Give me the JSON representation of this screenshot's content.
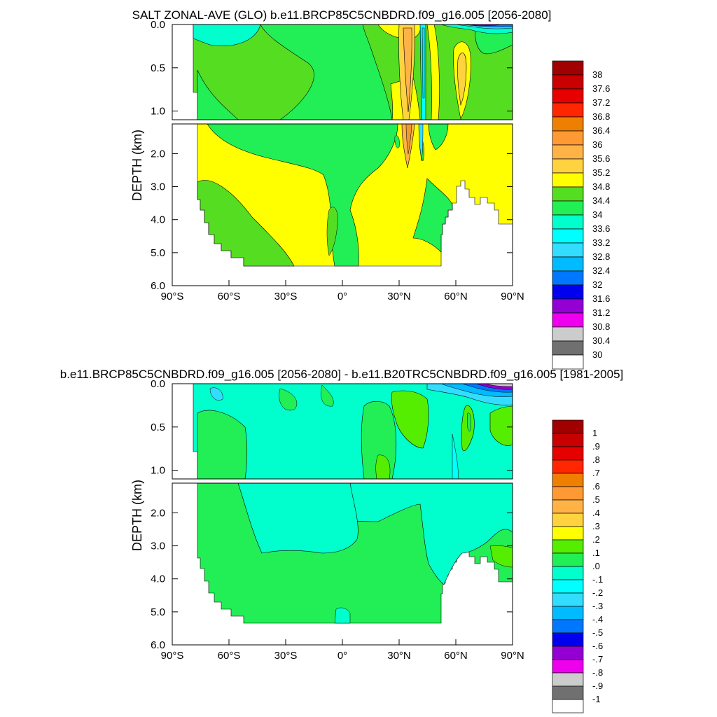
{
  "chart_data": [
    {
      "type": "heatmap",
      "title": "SALT ZONAL-AVE (GLO) b.e11.BRCP85C5CNBDRD.f09_g16.005 [2056-2080]",
      "xlabel": "",
      "ylabel": "DEPTH (km)",
      "x_ticks": [
        "90°S",
        "60°S",
        "30°S",
        "0°",
        "30°N",
        "60°N",
        "90°N"
      ],
      "x_values": [
        -90,
        -60,
        -30,
        0,
        30,
        60,
        90
      ],
      "xlim": [
        -90,
        90
      ],
      "upper_panel": {
        "ylim": [
          0,
          1.1
        ],
        "y_ticks": [
          "0.0",
          "0.5",
          "1.0"
        ],
        "y_values": [
          0,
          0.5,
          1.0
        ]
      },
      "lower_panel": {
        "ylim": [
          1.1,
          6.0
        ],
        "y_ticks": [
          "2.0",
          "3.0",
          "4.0",
          "5.0",
          "6.0"
        ],
        "y_values": [
          2,
          3,
          4,
          5,
          6
        ]
      },
      "colorbar": {
        "labels": [
          "38",
          "37.6",
          "37.2",
          "36.8",
          "36.4",
          "36",
          "35.6",
          "35.2",
          "34.8",
          "34.4",
          "34",
          "33.6",
          "33.2",
          "32.8",
          "32.4",
          "32",
          "31.6",
          "31.2",
          "30.8",
          "30.4",
          "30"
        ],
        "colors_top_to_bottom": [
          "#a00000",
          "#c80000",
          "#e60000",
          "#ff2600",
          "#ee7f00",
          "#ff9933",
          "#ffb347",
          "#ffd23f",
          "#ffff00",
          "#55dd22",
          "#22ee55",
          "#00ffcc",
          "#00ffff",
          "#33ddff",
          "#00bbff",
          "#0077ff",
          "#0000ee",
          "#9400d3",
          "#ee00ee",
          "#cccccc",
          "#707070",
          "#ffffff"
        ]
      },
      "dominant_values": {
        "surface_south": 33.8,
        "intermediate_south": 34.6,
        "deep": 35.0,
        "atlantic_30N": 36.0
      }
    },
    {
      "type": "heatmap",
      "title": "b.e11.BRCP85C5CNBDRD.f09_g16.005 [2056-2080] - b.e11.B20TRC5CNBDRD.f09_g16.005 [1981-2005]",
      "xlabel": "",
      "ylabel": "DEPTH (km)",
      "x_ticks": [
        "90°S",
        "60°S",
        "30°S",
        "0°",
        "30°N",
        "60°N",
        "90°N"
      ],
      "x_values": [
        -90,
        -60,
        -30,
        0,
        30,
        60,
        90
      ],
      "xlim": [
        -90,
        90
      ],
      "upper_panel": {
        "ylim": [
          0,
          1.1
        ],
        "y_ticks": [
          "0.0",
          "0.5",
          "1.0"
        ],
        "y_values": [
          0,
          0.5,
          1.0
        ]
      },
      "lower_panel": {
        "ylim": [
          1.1,
          6.0
        ],
        "y_ticks": [
          "2.0",
          "3.0",
          "4.0",
          "5.0",
          "6.0"
        ],
        "y_values": [
          2,
          3,
          4,
          5,
          6
        ]
      },
      "colorbar": {
        "labels": [
          "1",
          ".9",
          ".8",
          ".7",
          ".6",
          ".5",
          ".4",
          ".3",
          ".2",
          ".1",
          ".0",
          "-.1",
          "-.2",
          "-.3",
          "-.4",
          "-.5",
          "-.6",
          "-.7",
          "-.8",
          "-.9",
          "-1"
        ],
        "colors_top_to_bottom": [
          "#a00000",
          "#c80000",
          "#e60000",
          "#ff2600",
          "#ee7f00",
          "#ff9933",
          "#ffb347",
          "#ffd23f",
          "#ffff00",
          "#55ee00",
          "#22ee55",
          "#00ffcc",
          "#00ffff",
          "#33ddff",
          "#00bbff",
          "#0077ff",
          "#0000ee",
          "#9400d3",
          "#ee00ee",
          "#cccccc",
          "#707070",
          "#ffffff"
        ]
      },
      "dominant_values": {
        "upper_ocean": -0.05,
        "deep": 0.05,
        "atlantic_30N": 0.15
      }
    }
  ]
}
